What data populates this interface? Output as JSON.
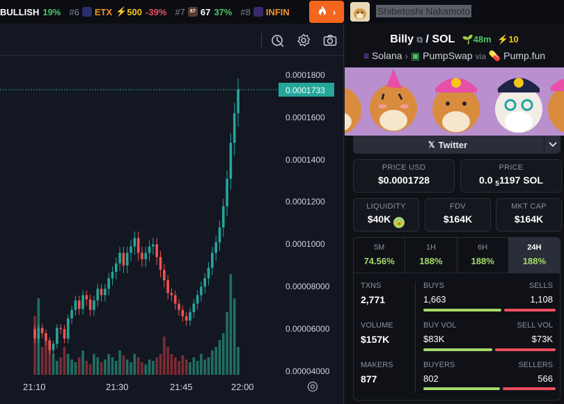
{
  "ticker": {
    "items": [
      {
        "rank": "",
        "symbol": "BULLISH",
        "change": "19%",
        "change_color": "green",
        "boost": ""
      },
      {
        "rank": "#6",
        "symbol": "ETX",
        "change": "-39%",
        "change_color": "red",
        "boost": "500"
      },
      {
        "rank": "#7",
        "symbol": "67",
        "change": "37%",
        "change_color": "green",
        "boost": ""
      },
      {
        "rank": "#8",
        "symbol": "INFIN",
        "change": "",
        "change_color": "orange",
        "boost": ""
      }
    ],
    "hot_icon": "fire-icon",
    "next_icon": "chevron-right-icon"
  },
  "chart": {
    "price_axis": [
      "0.0001800",
      "0.0001600",
      "0.0001400",
      "0.0001200",
      "0.0001000",
      "0.00008000",
      "0.00006000",
      "0.00004000"
    ],
    "current_price": "0.0001733",
    "time_axis": [
      "21:10",
      "21:30",
      "21:45",
      "22:00"
    ]
  },
  "chart_data": {
    "type": "candlestick",
    "ylim": [
      3.7e-05,
      0.000183
    ],
    "current_price": 0.0001733,
    "x_ticks": [
      "21:10",
      "21:30",
      "21:45",
      "22:00"
    ]
  },
  "header": {
    "username": "Shibetoshi Nakamoto"
  },
  "pair": {
    "base": "Billy",
    "quote": "SOL",
    "age": "48m",
    "boosts": "10",
    "chain": "Solana",
    "dex": "PumpSwap",
    "via_label": "via",
    "launchpad": "Pump.fun"
  },
  "twitter": {
    "label": "Twitter"
  },
  "metrics": {
    "price_usd": {
      "label": "PRICE USD",
      "value": "$0.0001728"
    },
    "price_sol": {
      "label": "PRICE",
      "prefix": "0.0",
      "subscript": "5",
      "suffix": "1197 SOL"
    },
    "liquidity": {
      "label": "LIQUIDITY",
      "value": "$40K"
    },
    "fdv": {
      "label": "FDV",
      "value": "$164K"
    },
    "mkt_cap": {
      "label": "MKT CAP",
      "value": "$164K"
    }
  },
  "timeframes": [
    {
      "label": "5M",
      "change": "74.56%"
    },
    {
      "label": "1H",
      "change": "188%"
    },
    {
      "label": "6H",
      "change": "188%"
    },
    {
      "label": "24H",
      "change": "188%"
    }
  ],
  "stats": {
    "txns": {
      "label": "TXNS",
      "value": "2,771"
    },
    "buys": {
      "label": "BUYS",
      "value": "1,663"
    },
    "sells": {
      "label": "SELLS",
      "value": "1,108"
    },
    "volume": {
      "label": "VOLUME",
      "value": "$157K"
    },
    "buy_vol": {
      "label": "BUY VOL",
      "value": "$83K"
    },
    "sell_vol": {
      "label": "SELL VOL",
      "value": "$73K"
    },
    "makers": {
      "label": "MAKERS",
      "value": "877"
    },
    "buyers": {
      "label": "BUYERS",
      "value": "802"
    },
    "sellers": {
      "label": "SELLERS",
      "value": "566"
    },
    "buy_ratio": 0.6,
    "buy_vol_ratio": 0.53,
    "buyers_ratio": 0.59
  },
  "colors": {
    "up": "#26a69a",
    "down": "#ef5350",
    "accent_green": "#4ec46b",
    "accent_orange": "#f5651e"
  }
}
